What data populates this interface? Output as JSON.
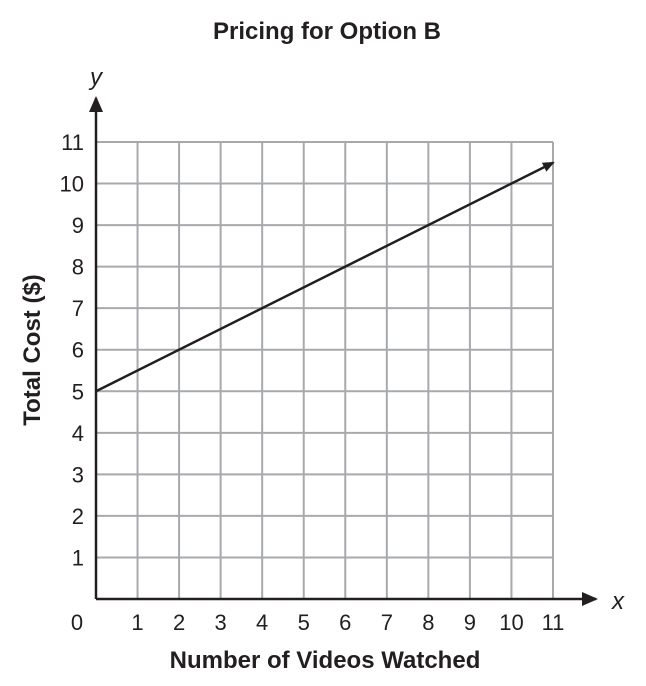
{
  "chart_data": {
    "type": "line",
    "title": "Pricing for Option B",
    "xlabel": "Number of Videos Watched",
    "ylabel": "Total Cost ($)",
    "x_var": "x",
    "y_var": "y",
    "origin_label": "0",
    "xlim": [
      0,
      11
    ],
    "ylim": [
      0,
      11
    ],
    "x_ticks": [
      "1",
      "2",
      "3",
      "4",
      "5",
      "6",
      "7",
      "8",
      "9",
      "10",
      "11"
    ],
    "y_ticks": [
      "1",
      "2",
      "3",
      "4",
      "5",
      "6",
      "7",
      "8",
      "9",
      "10",
      "11"
    ],
    "grid": true,
    "series": [
      {
        "x": [
          0,
          11
        ],
        "y": [
          5,
          10.5
        ],
        "color": "#231f20",
        "arrow_end": true
      }
    ]
  }
}
